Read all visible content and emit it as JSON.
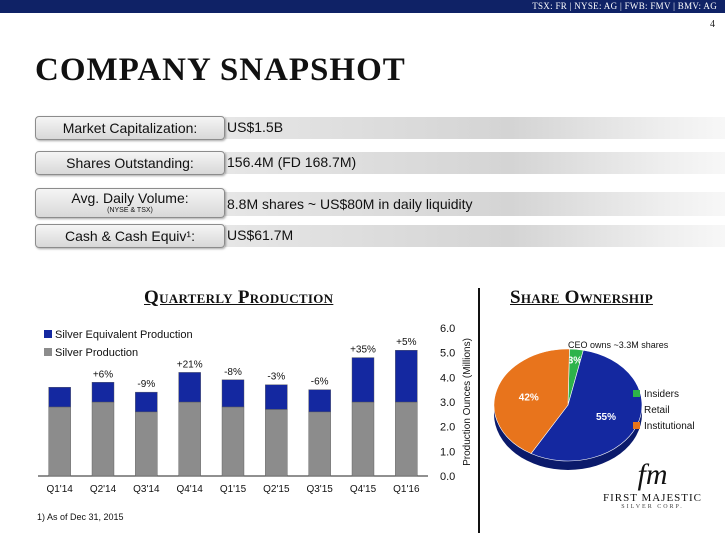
{
  "header": {
    "tickers": "TSX: FR  |  NYSE: AG  |  FWB: FMV  |  BMV: AG",
    "page_number": "4",
    "brand_color": "#0f2266"
  },
  "title": "COMPANY SNAPSHOT",
  "snapshot": [
    {
      "label": "Market Capitalization:",
      "value": "US$1.5B"
    },
    {
      "label": "Shares Outstanding:",
      "value": "156.4M (FD 168.7M)"
    },
    {
      "label": "Avg. Daily Volume:",
      "sublabel": "(NYSE & TSX)",
      "value": "8.8M shares ~ US$80M in daily liquidity"
    },
    {
      "label": "Cash & Cash Equiv¹:",
      "value": "US$61.7M"
    }
  ],
  "production_section": {
    "title": "Quarterly Production"
  },
  "ownership_section": {
    "title": "Share Ownership"
  },
  "footnote": "1) As of Dec 31, 2015",
  "chart_data": [
    {
      "type": "bar",
      "title": "Quarterly Production",
      "categories": [
        "Q1'14",
        "Q2'14",
        "Q3'14",
        "Q4'14",
        "Q1'15",
        "Q2'15",
        "Q3'15",
        "Q4'15",
        "Q1'16"
      ],
      "series": [
        {
          "name": "Silver Production",
          "color": "#8c8c8c",
          "values": [
            2.8,
            3.0,
            2.6,
            3.0,
            2.8,
            2.7,
            2.6,
            3.0,
            3.0
          ]
        },
        {
          "name": "Silver Equivalent Production",
          "color": "#1428a0",
          "values": [
            0.8,
            0.8,
            0.8,
            1.2,
            1.1,
            1.0,
            0.9,
            1.8,
            2.1
          ]
        }
      ],
      "annotations": [
        "",
        "+6%",
        "-9%",
        "+21%",
        "-8%",
        "-3%",
        "-6%",
        "+35%",
        "+5%"
      ],
      "ylabel": "Production Ounces (Millions)",
      "yticks": [
        "0.0",
        "1.0",
        "2.0",
        "3.0",
        "4.0",
        "5.0",
        "6.0"
      ],
      "ylim": [
        0,
        6
      ],
      "legend_position": "top-left",
      "stacked": true
    },
    {
      "type": "pie",
      "title": "Share Ownership",
      "slices": [
        {
          "label": "Insiders",
          "value": 3,
          "text": "3%",
          "color": "#2db34a"
        },
        {
          "label": "Retail",
          "value": 55,
          "text": "55%",
          "color": "#1428a0"
        },
        {
          "label": "Institutional",
          "value": 42,
          "text": "42%",
          "color": "#e8741c"
        }
      ],
      "annotation": "CEO owns ~3.3M shares",
      "legend_position": "right"
    }
  ],
  "logo": {
    "monogram": "fm",
    "name": "FIRST MAJESTIC",
    "sub": "SILVER CORP."
  }
}
